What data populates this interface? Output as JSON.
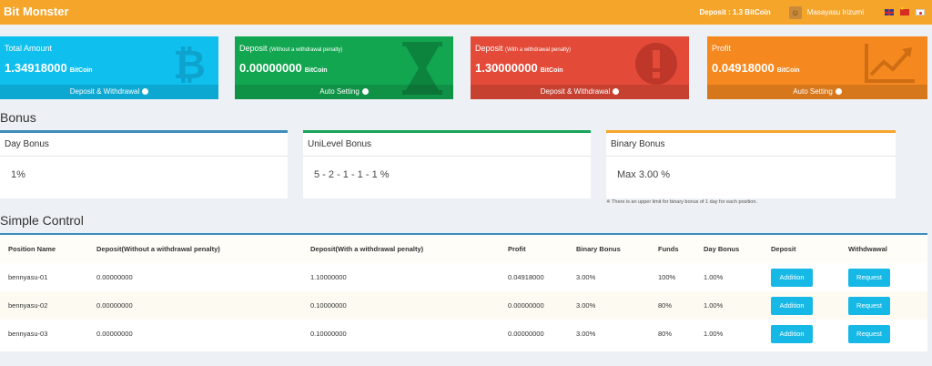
{
  "header": {
    "brand": "Bit Monster",
    "deposit_text": "Deposit : 1.3 BitCoin",
    "username": "Masayasu Irizumi",
    "flags": [
      "uk-flag-icon",
      "china-flag-icon",
      "japan-flag-icon"
    ]
  },
  "cards": [
    {
      "title": "Total Amount",
      "title_small": "",
      "value": "1.34918000",
      "unit": "BitCoin",
      "footer": "Deposit & Withdrawal",
      "icon": "bitcoin-icon",
      "color": "#0fc0ee"
    },
    {
      "title": "Deposit",
      "title_small": "(Without a withdrawal penalty)",
      "value": "0.00000000",
      "unit": "BitCoin",
      "footer": "Auto Setting",
      "icon": "hourglass-icon",
      "color": "#12a650"
    },
    {
      "title": "Deposit",
      "title_small": "(With a withdrawal penalty)",
      "value": "1.30000000",
      "unit": "BitCoin",
      "footer": "Deposit & Withdrawal",
      "icon": "exclamation-icon",
      "color": "#e34a38"
    },
    {
      "title": "Profit",
      "title_small": "",
      "value": "0.04918000",
      "unit": "BitCoin",
      "footer": "Auto Setting",
      "icon": "trend-chart-icon",
      "color": "#f5881f"
    }
  ],
  "bonus": {
    "section_title": "Bonus",
    "boxes": [
      {
        "title": "Day Bonus",
        "value": "1%"
      },
      {
        "title": "UniLevel Bonus",
        "value": "5 - 2 - 1 - 1 - 1 %"
      },
      {
        "title": "Binary Bonus",
        "value": "Max 3.00 %"
      }
    ],
    "note": "※ There is an upper limit for binary bonus of 1 day for each position."
  },
  "control": {
    "section_title": "Simple Control",
    "columns": [
      "Position Name",
      "Deposit(Without a withdrawal penalty)",
      "Deposit(With a withdrawal penalty)",
      "Profit",
      "Binary Bonus",
      "Funds",
      "Day Bonus",
      "Deposit",
      "Withdwawal"
    ],
    "rows": [
      {
        "name": "bennyasu-01",
        "dep_no_penalty": "0.00000000",
        "dep_penalty": "1.10000000",
        "profit": "0.04918000",
        "binary": "3.00%",
        "funds": "100%",
        "day": "1.00%",
        "deposit_btn": "Addition",
        "withdraw_btn": "Request"
      },
      {
        "name": "bennyasu-02",
        "dep_no_penalty": "0.00000000",
        "dep_penalty": "0.10000000",
        "profit": "0.00000000",
        "binary": "3.00%",
        "funds": "80%",
        "day": "1.00%",
        "deposit_btn": "Addition",
        "withdraw_btn": "Request"
      },
      {
        "name": "bennyasu-03",
        "dep_no_penalty": "0.00000000",
        "dep_penalty": "0.10000000",
        "profit": "0.00000000",
        "binary": "3.00%",
        "funds": "80%",
        "day": "1.00%",
        "deposit_btn": "Addition",
        "withdraw_btn": "Request"
      }
    ]
  }
}
